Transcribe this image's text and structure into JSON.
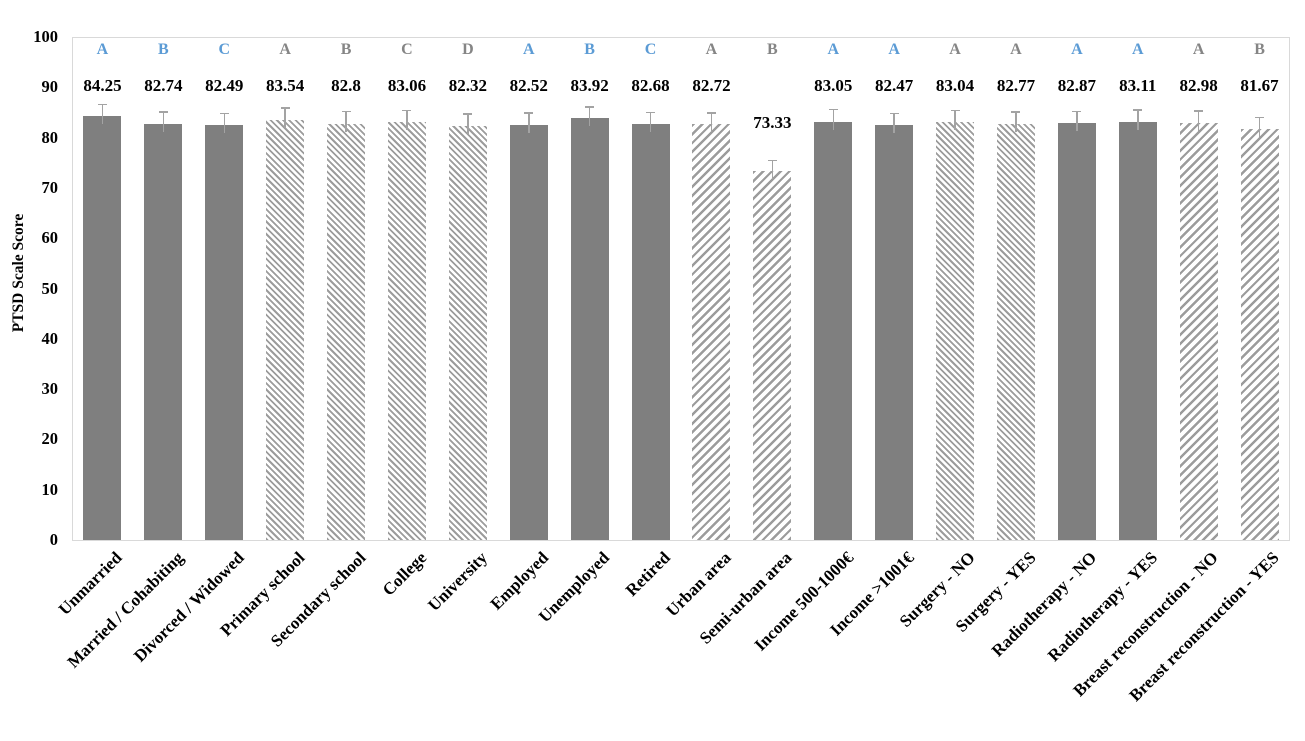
{
  "chart_data": {
    "type": "bar",
    "title": "",
    "xlabel": "",
    "ylabel": "PTSD Scale Score",
    "ylim": [
      0,
      100
    ],
    "yticks": [
      0,
      10,
      20,
      30,
      40,
      50,
      60,
      70,
      80,
      90,
      100
    ],
    "grid": false,
    "legend": "none",
    "categories": [
      "Unmarried",
      "Married / Cohabiting",
      "Divorced / Widowed",
      "Primary school",
      "Secondary school",
      "College",
      "University",
      "Employed",
      "Unemployed",
      "Retired",
      "Urban area",
      "Semi-urban area",
      "Income 500-1000€",
      "Income >1001€",
      "Surgery - NO",
      "Surgery - YES",
      "Radiotherapy - NO",
      "Radiotherapy - YES",
      "Breast reconstruction - NO",
      "Breast reconstruction - YES"
    ],
    "bars": [
      {
        "category": "Unmarried",
        "value": 84.25,
        "value_label": "84.25",
        "letter": "A",
        "letter_color": "blue",
        "fill": "solid",
        "error": 2.2
      },
      {
        "category": "Married / Cohabiting",
        "value": 82.74,
        "value_label": "82.74",
        "letter": "B",
        "letter_color": "blue",
        "fill": "solid",
        "error": 2.2
      },
      {
        "category": "Divorced / Widowed",
        "value": 82.49,
        "value_label": "82.49",
        "letter": "C",
        "letter_color": "blue",
        "fill": "solid",
        "error": 2.2
      },
      {
        "category": "Primary school",
        "value": 83.54,
        "value_label": "83.54",
        "letter": "A",
        "letter_color": "gray",
        "fill": "hatch_back",
        "error": 2.2
      },
      {
        "category": "Secondary school",
        "value": 82.8,
        "value_label": "82.8",
        "letter": "B",
        "letter_color": "gray",
        "fill": "hatch_back",
        "error": 2.2
      },
      {
        "category": "College",
        "value": 83.06,
        "value_label": "83.06",
        "letter": "C",
        "letter_color": "gray",
        "fill": "hatch_back",
        "error": 2.2
      },
      {
        "category": "University",
        "value": 82.32,
        "value_label": "82.32",
        "letter": "D",
        "letter_color": "gray",
        "fill": "hatch_back",
        "error": 2.2
      },
      {
        "category": "Employed",
        "value": 82.52,
        "value_label": "82.52",
        "letter": "A",
        "letter_color": "blue",
        "fill": "solid",
        "error": 2.2
      },
      {
        "category": "Unemployed",
        "value": 83.92,
        "value_label": "83.92",
        "letter": "B",
        "letter_color": "blue",
        "fill": "solid",
        "error": 2.0
      },
      {
        "category": "Retired",
        "value": 82.68,
        "value_label": "82.68",
        "letter": "C",
        "letter_color": "blue",
        "fill": "solid",
        "error": 2.2
      },
      {
        "category": "Urban area",
        "value": 82.72,
        "value_label": "82.72",
        "letter": "A",
        "letter_color": "gray",
        "fill": "hatch_fwd",
        "error": 2.0
      },
      {
        "category": "Semi-urban area",
        "value": 73.33,
        "value_label": "73.33",
        "letter": "B",
        "letter_color": "gray",
        "fill": "hatch_fwd",
        "error": 2.0
      },
      {
        "category": "Income 500-1000€",
        "value": 83.05,
        "value_label": "83.05",
        "letter": "A",
        "letter_color": "blue",
        "fill": "solid",
        "error": 2.4
      },
      {
        "category": "Income >1001€",
        "value": 82.47,
        "value_label": "82.47",
        "letter": "A",
        "letter_color": "blue",
        "fill": "solid",
        "error": 2.2
      },
      {
        "category": "Surgery - NO",
        "value": 83.04,
        "value_label": "83.04",
        "letter": "A",
        "letter_color": "gray",
        "fill": "hatch_back",
        "error": 2.2
      },
      {
        "category": "Surgery - YES",
        "value": 82.77,
        "value_label": "82.77",
        "letter": "A",
        "letter_color": "gray",
        "fill": "hatch_back",
        "error": 2.2
      },
      {
        "category": "Radiotherapy - NO",
        "value": 82.87,
        "value_label": "82.87",
        "letter": "A",
        "letter_color": "blue",
        "fill": "solid",
        "error": 2.2
      },
      {
        "category": "Radiotherapy - YES",
        "value": 83.11,
        "value_label": "83.11",
        "letter": "A",
        "letter_color": "blue",
        "fill": "solid",
        "error": 2.2
      },
      {
        "category": "Breast reconstruction - NO",
        "value": 82.98,
        "value_label": "82.98",
        "letter": "A",
        "letter_color": "gray",
        "fill": "hatch_fwd",
        "error": 2.2
      },
      {
        "category": "Breast reconstruction - YES",
        "value": 81.67,
        "value_label": "81.67",
        "letter": "B",
        "letter_color": "gray",
        "fill": "hatch_fwd",
        "error": 2.2
      }
    ],
    "colors": {
      "solid_fill": "#7f7f7f",
      "hatch_stripe": "#9c9c9c",
      "hatch_background": "#ffffff",
      "letter_blue": "#5b9bd5",
      "letter_gray": "#858585",
      "value_text": "#000000",
      "axis_text": "#000000",
      "error_bar": "#a3a3a3",
      "plot_border": "#d9d9d9",
      "background": "#ffffff"
    }
  }
}
